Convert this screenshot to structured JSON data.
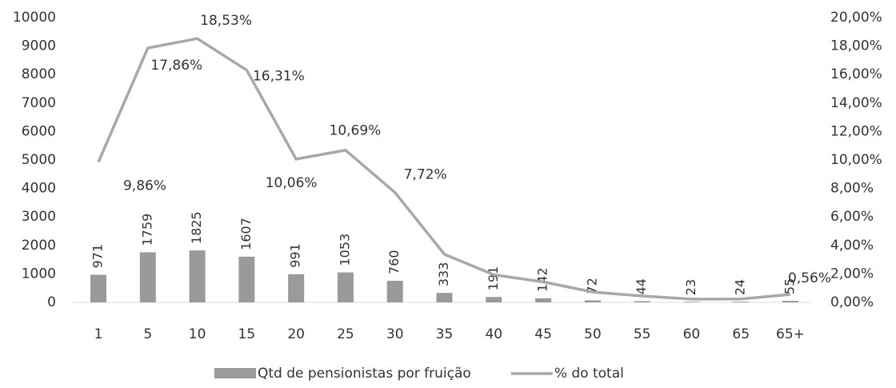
{
  "chart_data": {
    "type": "bar_line",
    "categories": [
      "1",
      "5",
      "10",
      "15",
      "20",
      "25",
      "30",
      "35",
      "40",
      "45",
      "50",
      "55",
      "60",
      "65",
      "65+"
    ],
    "series": [
      {
        "name": "Qtd de pensionistas por fruição",
        "type": "bar",
        "color": "#9a9a9a",
        "axis": "y",
        "values": [
          971,
          1759,
          1825,
          1607,
          991,
          1053,
          760,
          333,
          191,
          142,
          72,
          44,
          23,
          24,
          55
        ]
      },
      {
        "name": "% do total",
        "type": "line",
        "color": "#a8a8a8",
        "axis": "y2",
        "values": [
          9.86,
          17.86,
          18.53,
          16.31,
          10.06,
          10.69,
          7.72,
          3.38,
          1.94,
          1.44,
          0.73,
          0.45,
          0.23,
          0.24,
          0.56
        ],
        "value_labels": [
          "9,86%",
          "17,86%",
          "18,53%",
          "16,31%",
          "10,06%",
          "10,69%",
          "7,72%",
          null,
          null,
          null,
          null,
          null,
          null,
          null,
          "0,56%"
        ]
      }
    ],
    "ylim": [
      0,
      10000
    ],
    "yticks": [
      0,
      1000,
      2000,
      3000,
      4000,
      5000,
      6000,
      7000,
      8000,
      9000,
      10000
    ],
    "y2lim": [
      0,
      20
    ],
    "y2ticks": [
      {
        "value": 0,
        "label": "0,00%"
      },
      {
        "value": 2,
        "label": "2,00%"
      },
      {
        "value": 4,
        "label": "4,00%"
      },
      {
        "value": 6,
        "label": "6,00%"
      },
      {
        "value": 8,
        "label": "8,00%"
      },
      {
        "value": 10,
        "label": "10,00%"
      },
      {
        "value": 12,
        "label": "12,00%"
      },
      {
        "value": 14,
        "label": "14,00%"
      },
      {
        "value": 16,
        "label": "16,00%"
      },
      {
        "value": 18,
        "label": "18,00%"
      },
      {
        "value": 20,
        "label": "20,00%"
      }
    ],
    "legend": "bottom",
    "grid": false
  }
}
